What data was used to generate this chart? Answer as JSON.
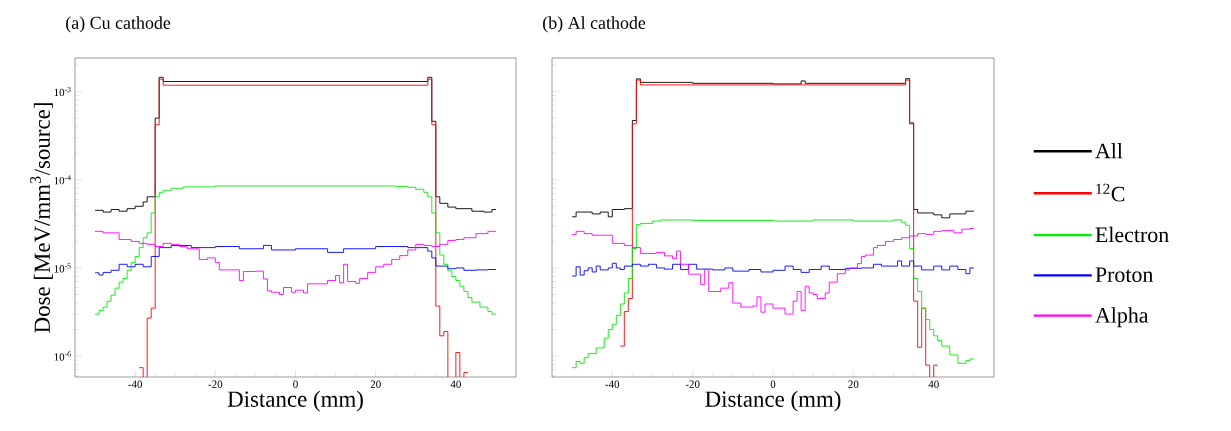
{
  "chart_data": [
    {
      "type": "step",
      "title": "(a) Cu cathode",
      "xlabel": "Distance (mm)",
      "ylabel": "Dose [MeV/mm$^{3}$/source]",
      "log": true,
      "xlim": [
        -55,
        55
      ],
      "ylim": [
        5.8e-07,
        0.0024
      ],
      "xticks": [
        -40,
        -20,
        0,
        20,
        40
      ],
      "yticks": [
        {
          "value": 1e-06,
          "label": "10$^{-6}$"
        },
        {
          "value": 1e-05,
          "label": "10$^{-5}$"
        },
        {
          "value": 0.0001,
          "label": "10$^{-4}$"
        },
        {
          "value": 0.001,
          "label": "10$^{-3}$"
        }
      ],
      "series": [
        {
          "color": "#000000",
          "x": [
            -50,
            -48,
            -46,
            -44,
            -42,
            -40,
            -38,
            -37,
            -35,
            -34,
            -33,
            33,
            34,
            35,
            36,
            38,
            40,
            44,
            47,
            49,
            50
          ],
          "values": [
            4.5e-05,
            4.3e-05,
            4.6e-05,
            4.4e-05,
            4.7e-05,
            5e-05,
            5.6e-05,
            6.4e-05,
            0.0005,
            0.00145,
            0.0013,
            0.00145,
            0.00046,
            6.4e-05,
            5.4e-05,
            4.9e-05,
            4.7e-05,
            4.4e-05,
            4.3e-05,
            4.6e-05,
            4.6e-05
          ]
        },
        {
          "color": "#ff0000",
          "x": [
            -39,
            -38,
            -37,
            -36,
            -35,
            -34,
            -33,
            33,
            34,
            35,
            36,
            37,
            38,
            40,
            41,
            42,
            43
          ],
          "values": [
            7.4e-07,
            null,
            2.7e-06,
            3.5e-06,
            0.00042,
            0.00138,
            0.00118,
            0.00138,
            0.00042,
            3.7e-06,
            1.7e-06,
            1.9e-06,
            null,
            1.1e-06,
            null,
            6.5e-07,
            6.5e-07
          ]
        },
        {
          "color": "#00ee00",
          "x": [
            -50,
            -49,
            -48,
            -47,
            -46,
            -45,
            -44,
            -43,
            -42,
            -41,
            -40,
            -39,
            -38,
            -37,
            -36,
            -35,
            -34,
            -33,
            -31,
            -28,
            -20,
            25,
            28,
            30,
            32,
            33,
            34,
            35,
            36,
            37,
            38,
            39,
            40,
            41,
            42,
            43,
            44,
            46,
            48,
            49,
            50
          ],
          "values": [
            3e-06,
            3.3e-06,
            3.6e-06,
            4.2e-06,
            4.9e-06,
            5.9e-06,
            6.9e-06,
            7.6e-06,
            9.4e-06,
            1.15e-05,
            1.35e-05,
            1.7e-05,
            2.2e-05,
            2.5e-05,
            4.2e-05,
            6.4e-05,
            7.2e-05,
            7.6e-05,
            8e-05,
            8.3e-05,
            8.5e-05,
            8.4e-05,
            8.2e-05,
            7.8e-05,
            7.2e-05,
            6.4e-05,
            4.2e-05,
            2.5e-05,
            1.4e-05,
            1.1e-05,
            9.3e-06,
            8e-06,
            7.2e-06,
            6.2e-06,
            5.4e-06,
            4.6e-06,
            4.1e-06,
            3.6e-06,
            3.2e-06,
            3e-06,
            3e-06
          ]
        },
        {
          "color": "#0000ff",
          "x": [
            -50,
            -49,
            -48,
            -46,
            -44,
            -42,
            -40,
            -38,
            -36,
            -34,
            -31,
            -26,
            -20,
            -14,
            -8,
            -6,
            0,
            8,
            12,
            20,
            28,
            33,
            34,
            35,
            38,
            40,
            42,
            45,
            48,
            50
          ],
          "values": [
            8.8e-06,
            8.3e-06,
            8.9e-06,
            9.4e-06,
            1.1e-05,
            1.03e-05,
            1.1e-05,
            1.03e-05,
            1.35e-05,
            1.7e-05,
            1.8e-05,
            1.7e-05,
            1.75e-05,
            1.65e-05,
            1.8e-05,
            1.6e-05,
            1.65e-05,
            1.5e-05,
            1.65e-05,
            1.75e-05,
            1.7e-05,
            1.55e-05,
            1.3e-05,
            1.05e-05,
            9.8e-06,
            1e-05,
            9.4e-06,
            9.5e-06,
            9.6e-06,
            9.6e-06
          ]
        },
        {
          "color": "#ff00ff",
          "x": [
            -50,
            -48,
            -44,
            -41,
            -39,
            -37,
            -35,
            -33,
            -31,
            -29,
            -27,
            -24,
            -22,
            -20,
            -19,
            -17,
            -14,
            -13,
            -10,
            -8,
            -7,
            -6,
            -4,
            -3,
            -1,
            0,
            2,
            3,
            6,
            8,
            10,
            11,
            12,
            13,
            15,
            16,
            18,
            20,
            22,
            24,
            26,
            28,
            30,
            32,
            34,
            36,
            38,
            40,
            42,
            45,
            48,
            50
          ],
          "values": [
            2.6e-05,
            2.5e-05,
            2.1e-05,
            2e-05,
            1.9e-05,
            1.85e-05,
            1.75e-05,
            1.9e-05,
            1.85e-05,
            1.75e-05,
            1.65e-05,
            1.25e-05,
            1.3e-05,
            1.15e-05,
            9.5e-06,
            9.5e-06,
            7.2e-06,
            9.1e-06,
            9.2e-06,
            7.5e-06,
            5.5e-06,
            5.3e-06,
            5e-06,
            6e-06,
            5.3e-06,
            5.6e-06,
            5.2e-06,
            6.6e-06,
            6.6e-06,
            7.2e-06,
            8.2e-06,
            6.8e-06,
            1.1e-05,
            7e-06,
            6.7e-06,
            7.6e-06,
            8.9e-06,
            1.03e-05,
            1.1e-05,
            1.25e-05,
            1.38e-05,
            1.6e-05,
            1.85e-05,
            1.8e-05,
            1.75e-05,
            1.85e-05,
            2.05e-05,
            2.1e-05,
            2.2e-05,
            2.45e-05,
            2.6e-05,
            2.6e-05
          ]
        }
      ]
    },
    {
      "type": "step",
      "title": "(b) Al cathode",
      "xlabel": "Distance (mm)",
      "log": true,
      "tick_labels": "x",
      "legend": "right",
      "xlim": [
        -55,
        55
      ],
      "ylim": [
        5.8e-07,
        0.0024
      ],
      "xticks": [
        -40,
        -20,
        0,
        20,
        40
      ],
      "yticks": [
        {
          "value": 1e-06,
          "label": null
        },
        {
          "value": 1e-05,
          "label": null
        },
        {
          "value": 0.0001,
          "label": null
        },
        {
          "value": 0.001,
          "label": null
        }
      ],
      "series": [
        {
          "name": "All",
          "color": "#000000",
          "x": [
            -50,
            -49,
            -45,
            -43,
            -41,
            -40,
            -37,
            -35,
            -34,
            -33,
            -20,
            0,
            7,
            8,
            33,
            34,
            35,
            36,
            40,
            42,
            44,
            48,
            50
          ],
          "values": [
            3.8e-05,
            4.3e-05,
            4.1e-05,
            4.3e-05,
            3.8e-05,
            4.6e-05,
            4.7e-05,
            0.00047,
            0.00139,
            0.00127,
            0.00124,
            0.00122,
            0.00132,
            0.00124,
            0.0014,
            0.00044,
            4.6e-05,
            4.2e-05,
            4e-05,
            3.7e-05,
            4.1e-05,
            4.4e-05,
            4.4e-05
          ]
        },
        {
          "name": "$^{12}$C",
          "color": "#ff0000",
          "x": [
            -38,
            -37,
            -36,
            -35,
            -34,
            -33,
            33,
            34,
            35,
            36,
            37,
            38,
            39,
            40,
            41
          ],
          "values": [
            1.3e-06,
            3.2e-06,
            4.5e-06,
            0.00043,
            0.00135,
            0.00119,
            0.00135,
            0.00043,
            4.2e-06,
            1.26e-06,
            3.5e-06,
            7.9e-07,
            null,
            7.9e-07,
            7.9e-07
          ]
        },
        {
          "name": "Electron",
          "color": "#00ee00",
          "x": [
            -50,
            -49,
            -48,
            -47,
            -46,
            -44,
            -42,
            -41,
            -40,
            -39,
            -38,
            -37,
            -36,
            -35,
            -34,
            -33,
            -30,
            -28,
            -20,
            0,
            10,
            20,
            30,
            32,
            33,
            34,
            35,
            36,
            37,
            38,
            39,
            40,
            41,
            42,
            44,
            46,
            48,
            49,
            50
          ],
          "values": [
            7.4e-07,
            8.7e-07,
            8.3e-07,
            9.6e-07,
            1.07e-06,
            1.24e-06,
            1.6e-06,
            2e-06,
            2.3e-06,
            2.9e-06,
            3.9e-06,
            5.2e-06,
            7.6e-06,
            1.66e-05,
            3.1e-05,
            3.2e-05,
            3.4e-05,
            3.5e-05,
            3.45e-05,
            3.4e-05,
            3.5e-05,
            3.4e-05,
            3.5e-05,
            3.3e-05,
            3.05e-05,
            1.66e-05,
            7.6e-06,
            5.4e-06,
            3.5e-06,
            2.6e-06,
            2e-06,
            1.7e-06,
            1.5e-06,
            1.3e-06,
            1.03e-06,
            8.3e-07,
            8.9e-07,
            9.3e-07,
            9.3e-07
          ]
        },
        {
          "name": "Proton",
          "color": "#0000ff",
          "x": [
            -50,
            -49,
            -48,
            -47,
            -46,
            -45,
            -44,
            -43,
            -41,
            -40,
            -39,
            -38,
            -37,
            -35,
            -33,
            -31,
            -29,
            -27,
            -25,
            -23,
            -21,
            -19,
            -15,
            -12,
            -10,
            -6,
            -3,
            0,
            3,
            5,
            7,
            9,
            12,
            14,
            18,
            22,
            25,
            27,
            31,
            32,
            34,
            35,
            37,
            40,
            42,
            44,
            46,
            48,
            49,
            50
          ],
          "values": [
            8.1e-06,
            1.03e-05,
            8.3e-06,
            9.3e-06,
            1e-05,
            9e-06,
            1.05e-05,
            9.5e-06,
            1e-05,
            1.13e-05,
            1e-05,
            9.6e-06,
            1.05e-05,
            1.1e-05,
            1.05e-05,
            1.1e-05,
            1e-05,
            9.7e-06,
            1.1e-05,
            9.6e-06,
            1.1e-05,
            9.7e-06,
            9.5e-06,
            1e-05,
            9.2e-06,
            9.6e-06,
            9e-06,
            9.4e-06,
            1.05e-05,
            9.6e-06,
            8.9e-06,
            9.6e-06,
            1.05e-05,
            9.6e-06,
            9.9e-06,
            1e-05,
            1.1e-05,
            1.05e-05,
            1.2e-05,
            1.05e-05,
            1.2e-05,
            1.05e-05,
            9.5e-06,
            1.05e-05,
            9.5e-06,
            1.05e-05,
            9.6e-06,
            8.6e-06,
            1e-05,
            1e-05
          ]
        },
        {
          "name": "Alpha",
          "color": "#ff00ff",
          "x": [
            -50,
            -49,
            -47,
            -45,
            -40,
            -37,
            -35,
            -33,
            -29,
            -27,
            -25,
            -24,
            -23,
            -21,
            -18,
            -17,
            -16,
            -13,
            -11,
            -10,
            -8,
            -5,
            -4,
            -3,
            -2,
            0,
            3,
            5,
            6,
            7,
            8,
            9,
            10,
            11,
            13,
            14,
            16,
            18,
            19,
            21,
            22,
            23,
            25,
            26,
            28,
            30,
            32,
            34,
            36,
            38,
            40,
            42,
            45,
            47,
            49,
            50
          ],
          "values": [
            2.4e-05,
            2.6e-05,
            2.45e-05,
            2.35e-05,
            1.9e-05,
            1.8e-05,
            1.7e-05,
            1.46e-05,
            1.5e-05,
            1.37e-05,
            1.28e-05,
            1.55e-05,
            1.1e-05,
            8.5e-06,
            6.5e-06,
            9.6e-06,
            5.4e-06,
            5.9e-06,
            6.8e-06,
            4e-06,
            3.6e-06,
            3.7e-06,
            4.7e-06,
            3.15e-06,
            3.9e-06,
            3.5e-06,
            3e-06,
            4.2e-06,
            5.4e-06,
            3.3e-06,
            6.2e-06,
            5.2e-06,
            5e-06,
            4.5e-06,
            5.2e-06,
            6.9e-06,
            8.6e-06,
            9.5e-06,
            1e-05,
            1.12e-05,
            1.35e-05,
            1.4e-05,
            1.7e-05,
            1.8e-05,
            2e-05,
            2.1e-05,
            2.2e-05,
            2.3e-05,
            2.45e-05,
            2.4e-05,
            2.6e-05,
            2.65e-05,
            2.5e-05,
            2.75e-05,
            2.8e-05,
            2.8e-05
          ]
        }
      ]
    }
  ]
}
